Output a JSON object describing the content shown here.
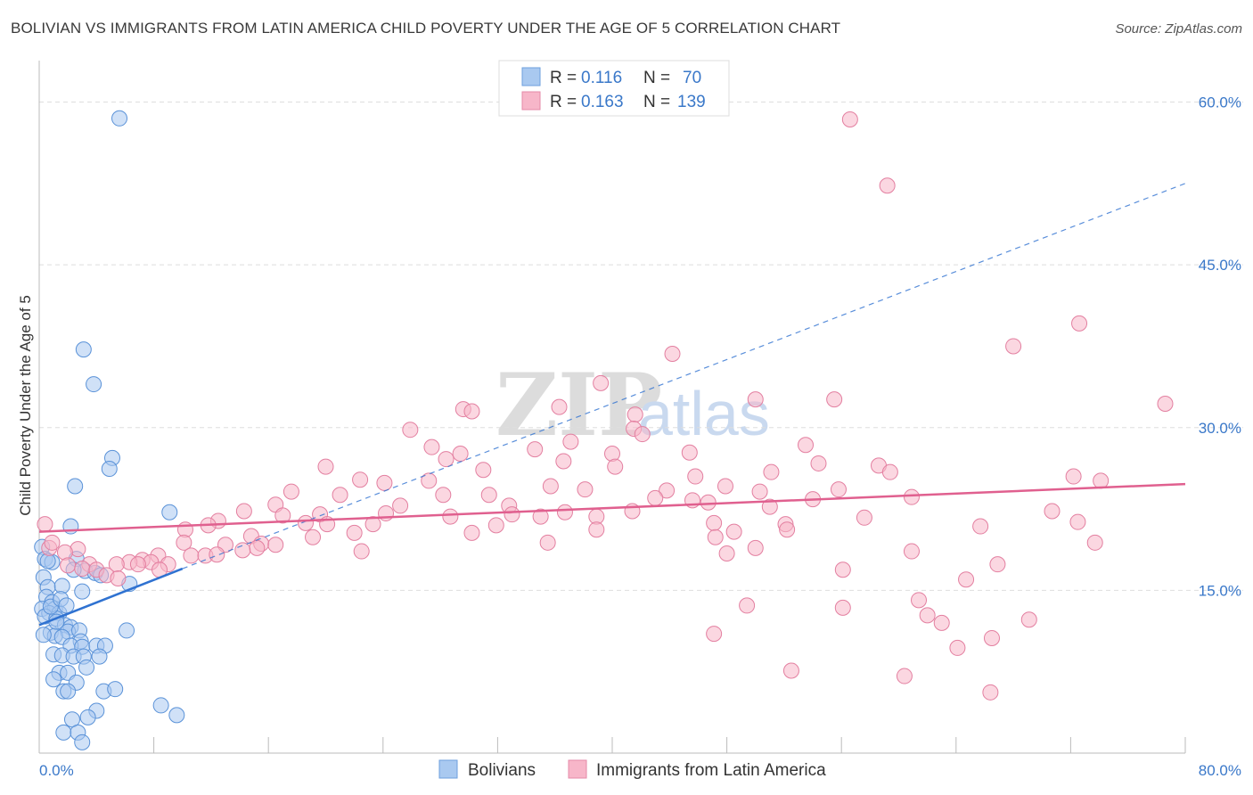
{
  "title": "BOLIVIAN VS IMMIGRANTS FROM LATIN AMERICA CHILD POVERTY UNDER THE AGE OF 5 CORRELATION CHART",
  "source": "Source: ZipAtlas.com",
  "watermark": {
    "zip": "ZIP",
    "atlas": "atlas"
  },
  "legend_box": [
    {
      "r_label": "R =",
      "r_value": "0.116",
      "n_label": "N =",
      "n_value": "70",
      "color": "#a9c9f0"
    },
    {
      "r_label": "R =",
      "r_value": "0.163",
      "n_label": "N =",
      "n_value": "139",
      "color": "#f7b6c9"
    }
  ],
  "bottom_legend": [
    {
      "label": "Bolivians",
      "color": "#a9c9f0"
    },
    {
      "label": "Immigrants from Latin America",
      "color": "#f7b6c9"
    }
  ],
  "chart_data": {
    "type": "scatter",
    "title": "BOLIVIAN VS IMMIGRANTS FROM LATIN AMERICA CHILD POVERTY UNDER THE AGE OF 5 CORRELATION CHART",
    "xlabel": "",
    "ylabel": "Child Poverty Under the Age of 5",
    "xlim": [
      0,
      80
    ],
    "ylim": [
      0,
      63
    ],
    "x_tick_labels": [
      "0.0%",
      "80.0%"
    ],
    "y_ticks": [
      15,
      30,
      45,
      60
    ],
    "y_tick_labels": [
      "15.0%",
      "30.0%",
      "45.0%",
      "60.0%"
    ],
    "grid": true,
    "series": [
      {
        "name": "Bolivians",
        "color": "#a9c9f0",
        "stroke": "#5a92d8",
        "trend": {
          "x0": 0,
          "y0": 11.8,
          "x1": 10,
          "y1": 17.0,
          "dashed_x1": 80,
          "dashed_y1": 52.5,
          "color": "#2f72d1"
        },
        "points": [
          [
            5.6,
            58.5
          ],
          [
            3.1,
            37.2
          ],
          [
            3.8,
            34.0
          ],
          [
            5.1,
            27.2
          ],
          [
            4.9,
            26.2
          ],
          [
            2.5,
            24.6
          ],
          [
            9.1,
            22.2
          ],
          [
            2.2,
            20.9
          ],
          [
            0.2,
            19.0
          ],
          [
            0.4,
            17.9
          ],
          [
            0.9,
            17.6
          ],
          [
            2.6,
            17.9
          ],
          [
            3.2,
            16.8
          ],
          [
            3.9,
            16.6
          ],
          [
            4.3,
            16.4
          ],
          [
            0.3,
            16.2
          ],
          [
            0.6,
            15.3
          ],
          [
            6.3,
            15.6
          ],
          [
            1.6,
            15.4
          ],
          [
            3.0,
            14.9
          ],
          [
            0.5,
            14.4
          ],
          [
            0.9,
            13.9
          ],
          [
            0.2,
            13.3
          ],
          [
            1.1,
            13.3
          ],
          [
            0.7,
            12.9
          ],
          [
            1.4,
            12.9
          ],
          [
            0.4,
            12.6
          ],
          [
            1.2,
            12.4
          ],
          [
            1.8,
            11.8
          ],
          [
            2.2,
            11.6
          ],
          [
            0.8,
            11.1
          ],
          [
            2.0,
            11.2
          ],
          [
            2.8,
            11.3
          ],
          [
            6.1,
            11.3
          ],
          [
            1.1,
            10.8
          ],
          [
            1.6,
            10.7
          ],
          [
            2.9,
            10.3
          ],
          [
            2.2,
            9.9
          ],
          [
            3.0,
            9.8
          ],
          [
            4.0,
            9.9
          ],
          [
            4.6,
            9.9
          ],
          [
            1.0,
            9.1
          ],
          [
            1.6,
            9.0
          ],
          [
            2.4,
            8.9
          ],
          [
            3.1,
            8.9
          ],
          [
            4.2,
            8.9
          ],
          [
            3.3,
            7.9
          ],
          [
            1.4,
            7.4
          ],
          [
            2.0,
            7.4
          ],
          [
            2.6,
            6.5
          ],
          [
            1.7,
            5.7
          ],
          [
            2.0,
            5.7
          ],
          [
            4.5,
            5.7
          ],
          [
            5.3,
            5.9
          ],
          [
            4.0,
            3.9
          ],
          [
            8.5,
            4.4
          ],
          [
            3.4,
            3.3
          ],
          [
            2.3,
            3.1
          ],
          [
            9.6,
            3.5
          ],
          [
            1.7,
            1.9
          ],
          [
            2.7,
            1.9
          ],
          [
            3.0,
            1.0
          ],
          [
            1.2,
            12.1
          ],
          [
            0.8,
            13.5
          ],
          [
            1.5,
            14.2
          ],
          [
            2.4,
            16.9
          ],
          [
            0.6,
            17.7
          ],
          [
            1.9,
            13.6
          ],
          [
            0.3,
            10.9
          ],
          [
            1.0,
            6.8
          ]
        ]
      },
      {
        "name": "Immigrants from Latin America",
        "color": "#f7b6c9",
        "stroke": "#e37fa0",
        "trend": {
          "x0": 0,
          "y0": 20.4,
          "x1": 80,
          "y1": 24.8,
          "color": "#e0608f"
        },
        "points": [
          [
            56.6,
            58.4
          ],
          [
            59.2,
            52.3
          ],
          [
            72.6,
            39.6
          ],
          [
            68.0,
            37.5
          ],
          [
            44.2,
            36.8
          ],
          [
            39.2,
            34.1
          ],
          [
            50.0,
            32.6
          ],
          [
            55.5,
            32.6
          ],
          [
            78.6,
            32.2
          ],
          [
            29.6,
            31.7
          ],
          [
            30.2,
            31.5
          ],
          [
            36.3,
            31.9
          ],
          [
            41.6,
            31.2
          ],
          [
            25.9,
            29.8
          ],
          [
            41.5,
            29.9
          ],
          [
            42.1,
            29.4
          ],
          [
            37.1,
            28.7
          ],
          [
            27.4,
            28.2
          ],
          [
            34.6,
            28.0
          ],
          [
            53.5,
            28.4
          ],
          [
            45.4,
            27.7
          ],
          [
            40.0,
            27.6
          ],
          [
            29.4,
            27.6
          ],
          [
            28.4,
            27.1
          ],
          [
            36.6,
            26.9
          ],
          [
            20.0,
            26.4
          ],
          [
            40.2,
            26.4
          ],
          [
            54.4,
            26.7
          ],
          [
            58.6,
            26.5
          ],
          [
            31.0,
            26.1
          ],
          [
            51.1,
            25.9
          ],
          [
            45.8,
            25.5
          ],
          [
            59.4,
            25.9
          ],
          [
            72.2,
            25.5
          ],
          [
            74.1,
            25.1
          ],
          [
            22.4,
            25.2
          ],
          [
            27.2,
            25.1
          ],
          [
            24.1,
            24.9
          ],
          [
            35.7,
            24.6
          ],
          [
            47.9,
            24.6
          ],
          [
            55.8,
            24.3
          ],
          [
            38.1,
            24.3
          ],
          [
            43.8,
            24.2
          ],
          [
            50.3,
            24.1
          ],
          [
            17.6,
            24.1
          ],
          [
            21.0,
            23.8
          ],
          [
            28.2,
            23.8
          ],
          [
            31.4,
            23.8
          ],
          [
            43.0,
            23.5
          ],
          [
            60.9,
            23.6
          ],
          [
            54.0,
            23.4
          ],
          [
            45.6,
            23.3
          ],
          [
            16.5,
            22.9
          ],
          [
            25.2,
            22.8
          ],
          [
            32.8,
            22.8
          ],
          [
            46.7,
            23.1
          ],
          [
            51.0,
            22.7
          ],
          [
            14.3,
            22.3
          ],
          [
            24.2,
            22.1
          ],
          [
            19.6,
            22.0
          ],
          [
            33.0,
            22.0
          ],
          [
            36.7,
            22.2
          ],
          [
            41.4,
            22.3
          ],
          [
            70.7,
            22.3
          ],
          [
            17.0,
            21.9
          ],
          [
            28.7,
            21.8
          ],
          [
            35.0,
            21.8
          ],
          [
            38.9,
            21.8
          ],
          [
            57.6,
            21.7
          ],
          [
            12.5,
            21.4
          ],
          [
            18.6,
            21.2
          ],
          [
            20.1,
            21.1
          ],
          [
            23.3,
            21.1
          ],
          [
            31.9,
            21.0
          ],
          [
            11.8,
            21.0
          ],
          [
            47.1,
            21.2
          ],
          [
            52.1,
            21.1
          ],
          [
            72.5,
            21.3
          ],
          [
            0.4,
            21.1
          ],
          [
            10.2,
            20.6
          ],
          [
            22.0,
            20.3
          ],
          [
            30.2,
            20.3
          ],
          [
            38.9,
            20.6
          ],
          [
            48.5,
            20.4
          ],
          [
            52.2,
            20.6
          ],
          [
            65.7,
            20.9
          ],
          [
            14.8,
            20.0
          ],
          [
            19.1,
            19.9
          ],
          [
            47.2,
            19.9
          ],
          [
            10.1,
            19.4
          ],
          [
            13.0,
            19.2
          ],
          [
            15.5,
            19.3
          ],
          [
            16.5,
            19.2
          ],
          [
            35.5,
            19.4
          ],
          [
            73.7,
            19.4
          ],
          [
            15.2,
            18.9
          ],
          [
            50.0,
            18.9
          ],
          [
            2.7,
            18.8
          ],
          [
            14.2,
            18.7
          ],
          [
            22.5,
            18.6
          ],
          [
            60.9,
            18.6
          ],
          [
            48.0,
            18.4
          ],
          [
            1.8,
            18.5
          ],
          [
            8.3,
            18.2
          ],
          [
            10.6,
            18.2
          ],
          [
            11.6,
            18.2
          ],
          [
            12.4,
            18.3
          ],
          [
            0.7,
            18.9
          ],
          [
            7.2,
            17.8
          ],
          [
            7.8,
            17.6
          ],
          [
            9.0,
            17.4
          ],
          [
            6.3,
            17.6
          ],
          [
            6.9,
            17.4
          ],
          [
            3.5,
            17.4
          ],
          [
            5.4,
            17.4
          ],
          [
            66.9,
            17.4
          ],
          [
            2.0,
            17.3
          ],
          [
            3.0,
            17.0
          ],
          [
            4.0,
            16.9
          ],
          [
            8.4,
            16.9
          ],
          [
            56.1,
            16.9
          ],
          [
            4.7,
            16.4
          ],
          [
            5.5,
            16.1
          ],
          [
            64.7,
            16.0
          ],
          [
            61.4,
            14.1
          ],
          [
            49.4,
            13.6
          ],
          [
            56.1,
            13.4
          ],
          [
            62.0,
            12.7
          ],
          [
            69.1,
            12.3
          ],
          [
            63.0,
            12.0
          ],
          [
            47.1,
            11.0
          ],
          [
            66.5,
            10.6
          ],
          [
            64.1,
            9.7
          ],
          [
            52.5,
            7.6
          ],
          [
            60.4,
            7.1
          ],
          [
            66.4,
            5.6
          ],
          [
            0.9,
            19.4
          ]
        ]
      }
    ]
  }
}
